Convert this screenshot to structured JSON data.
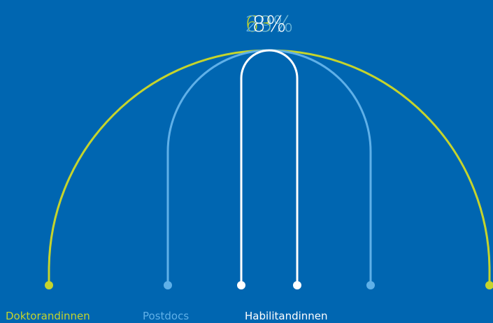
{
  "chart_data": {
    "type": "arc",
    "categories": [
      "Doktorandinnen",
      "Postdocs",
      "Habilitandinnen"
    ],
    "values": [
      63,
      29,
      8
    ],
    "value_labels": [
      "63%",
      "29%",
      "8%"
    ],
    "colors": [
      "#c5d42c",
      "#5fb0e8",
      "#ffffff"
    ]
  }
}
